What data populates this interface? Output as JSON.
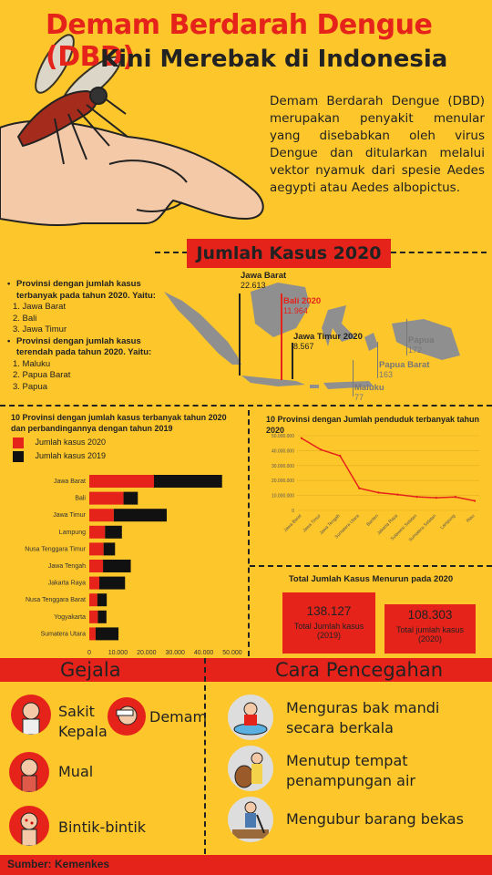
{
  "header": {
    "title_line1": "Demam Berdarah Dengue (DBD)",
    "title_line2": "Kini Merebak di Indonesia",
    "intro": "Demam Berdarah Dengue (DBD) merupakan penyakit menular yang disebabkan oleh virus Dengue dan ditularkan melalui vektor nyamuk dari spesie Aedes aegypti atau Aedes albopictus."
  },
  "cases_2020": {
    "banner": "Jumlah Kasus 2020",
    "highest_intro": "Provinsi dengan jumlah kasus terbanyak pada tahun 2020. Yaitu:",
    "highest": [
      "1. Jawa Barat",
      "2. Bali",
      "3. Jawa Timur"
    ],
    "lowest_intro": "Provinsi dengan jumlah kasus terendah pada tahun 2020. Yaitu:",
    "lowest": [
      "1. Maluku",
      "2. Papua Barat",
      "3. Papua"
    ],
    "map_labels": [
      {
        "name": "Jawa Barat",
        "value": "22.613"
      },
      {
        "name": "Bali 2020",
        "value": "11.964"
      },
      {
        "name": "Jawa Timur 2020",
        "value": "8.567"
      },
      {
        "name": "Papua",
        "value": "172"
      },
      {
        "name": "Papua Barat",
        "value": "163"
      },
      {
        "name": "Maluku",
        "value": "77"
      }
    ]
  },
  "chart_data": [
    {
      "type": "bar",
      "title": "10 Provinsi dengan jumlah kasus terbanyak tahun 2020 dan perbandingannya dengan tahun 2019",
      "orientation": "horizontal-stacked",
      "categories": [
        "Jawa Barat",
        "Bali",
        "Jawa Timur",
        "Lampung",
        "Nusa Tenggara Timur",
        "Jawa Tengah",
        "Jakarta Raya",
        "Nusa Tenggara Barat",
        "Yogyakarta",
        "Sumatera Utara"
      ],
      "series": [
        {
          "name": "Jumlah kasus 2020",
          "color": "#e5231b",
          "values": [
            22613,
            11964,
            8567,
            5500,
            5000,
            4800,
            3500,
            2800,
            3000,
            2200
          ]
        },
        {
          "name": "Jumlah kasus 2019",
          "color": "#111111",
          "values": [
            23800,
            5000,
            18500,
            5900,
            4000,
            9700,
            9000,
            3300,
            3000,
            8000
          ]
        }
      ],
      "xticks": [
        "0",
        "10.000",
        "20.000",
        "30.000",
        "40.000",
        "50.000"
      ],
      "xlim": [
        0,
        50000
      ]
    },
    {
      "type": "line",
      "title": "10 Provinsi dengan Jumlah penduduk terbanyak tahun 2020",
      "categories": [
        "Jawa Barat",
        "Jawa Timur",
        "Jawa Tengah",
        "Sumatera Utara",
        "Banten",
        "Jakarta Raya",
        "Sulawesi Selatan",
        "Sumatera Selatan",
        "Lampung",
        "Riau"
      ],
      "values": [
        48270000,
        40670000,
        36520000,
        14800000,
        11900000,
        10560000,
        9070000,
        8470000,
        9000000,
        6390000
      ],
      "color": "#e5231b",
      "yticks": [
        "50.000.000",
        "40.000.000",
        "30.000.000",
        "20.000.000",
        "10.000.000",
        "0"
      ],
      "ylim": [
        0,
        50000000
      ]
    }
  ],
  "totals": {
    "title": "Total Jumlah Kasus Menurun pada 2020",
    "y2019": {
      "value": "138.127",
      "label": "Total Jumlah kasus",
      "year": "(2019)"
    },
    "y2020": {
      "value": "108.303",
      "label": "Total jumlah kasus",
      "year": "(2020)"
    }
  },
  "gejala": {
    "title": "Gejala",
    "items": [
      "Sakit Kepala",
      "Demam",
      "Mual",
      "Bintik-bintik"
    ]
  },
  "pencegahan": {
    "title": "Cara Pencegahan",
    "items": [
      "Menguras bak mandi secara berkala",
      "Menutup tempat penampungan air",
      "Mengubur barang bekas"
    ]
  },
  "source": "Sumber: Kemenkes"
}
